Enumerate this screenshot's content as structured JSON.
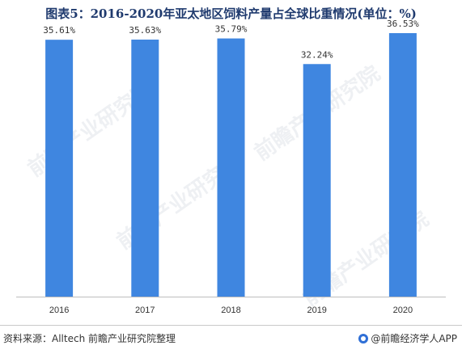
{
  "title": "图表5：2016-2020年亚太地区饲料产量占全球比重情况(单位：%)",
  "source": "资料来源：Alltech 前瞻产业研究院整理",
  "brand": "@前瞻经济学人APP",
  "watermark": "前瞻产业研究院",
  "colors": {
    "bar": "#3f86e0",
    "label": "#333333",
    "axis": "#bdbdbd"
  },
  "chart_data": {
    "type": "bar",
    "categories": [
      "2016",
      "2017",
      "2018",
      "2019",
      "2020"
    ],
    "values": [
      35.61,
      35.63,
      35.79,
      32.24,
      36.53
    ],
    "value_labels": [
      "35.61%",
      "35.63%",
      "35.79%",
      "32.24%",
      "36.53%"
    ],
    "ylim": [
      0,
      40
    ]
  }
}
